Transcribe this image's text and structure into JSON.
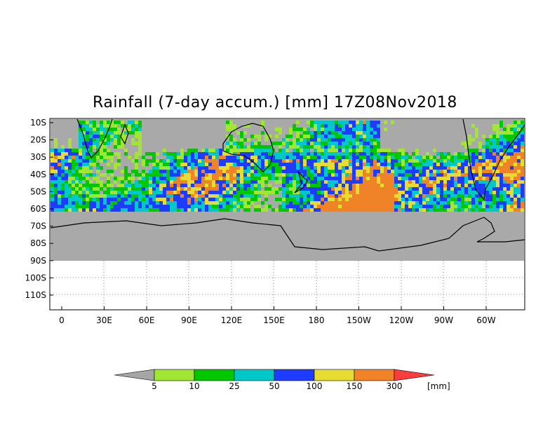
{
  "title": "Rainfall (7-day accum.) [mm] 17Z08Nov2018",
  "map": {
    "y_labels": [
      "10S",
      "20S",
      "30S",
      "40S",
      "50S",
      "60S",
      "70S",
      "80S",
      "90S",
      "100S",
      "110S"
    ],
    "x_labels": [
      "0",
      "30E",
      "60E",
      "90E",
      "120E",
      "150E",
      "180",
      "150W",
      "120W",
      "90W",
      "60W"
    ],
    "land_color": "#a9a9a9",
    "data_region": "10S-60S",
    "antarctica_region": "60S-90S"
  },
  "legend": {
    "ticks": [
      "5",
      "10",
      "25",
      "50",
      "100",
      "150",
      "300"
    ],
    "unit": "[mm]",
    "colors": [
      "#a6a6a6",
      "#a0e632",
      "#00c800",
      "#00c8c8",
      "#1e3cff",
      "#e6dc32",
      "#f08228",
      "#fa3c3c"
    ]
  }
}
